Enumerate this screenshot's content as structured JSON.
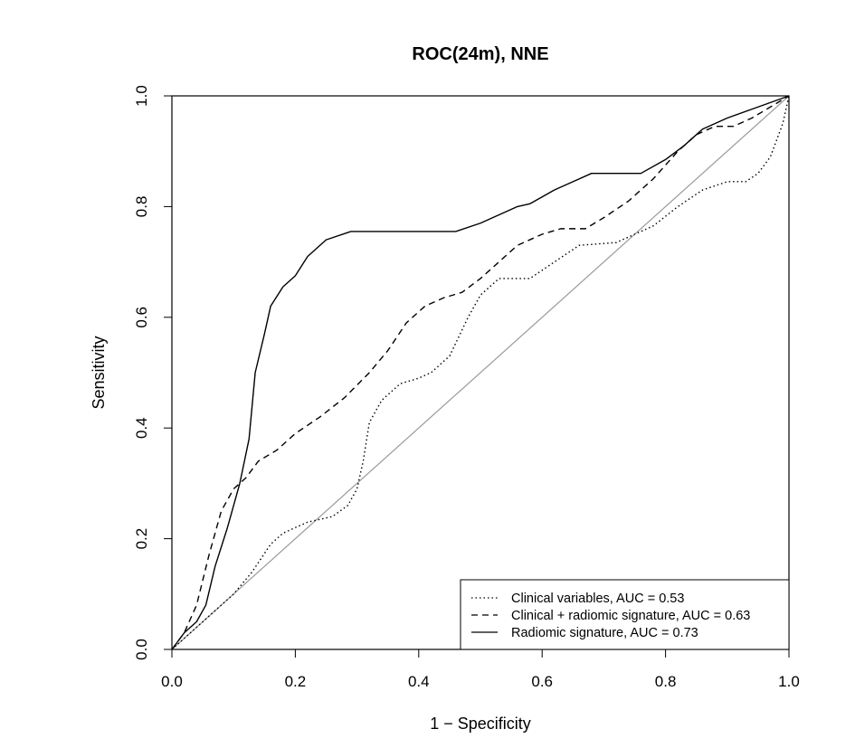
{
  "chart_data": {
    "type": "line",
    "title": "ROC(24m), NNE",
    "xlabel": "1 − Specificity",
    "ylabel": "Sensitivity",
    "xlim": [
      0,
      1
    ],
    "ylim": [
      0,
      1
    ],
    "x_ticks": [
      "0.0",
      "0.2",
      "0.4",
      "0.6",
      "0.8",
      "1.0"
    ],
    "y_ticks": [
      "0.0",
      "0.2",
      "0.4",
      "0.6",
      "0.8",
      "1.0"
    ],
    "grid": false,
    "legend_position": "bottom-right",
    "reference_line": {
      "from": [
        0,
        0
      ],
      "to": [
        1,
        1
      ],
      "color": "#9a9a9a"
    },
    "series": [
      {
        "name": "Clinical variables, AUC = 0.53",
        "style": "dotted",
        "color": "#000000",
        "points": [
          [
            0,
            0
          ],
          [
            0.02,
            0.02
          ],
          [
            0.05,
            0.05
          ],
          [
            0.08,
            0.08
          ],
          [
            0.1,
            0.1
          ],
          [
            0.13,
            0.14
          ],
          [
            0.16,
            0.19
          ],
          [
            0.18,
            0.21
          ],
          [
            0.22,
            0.23
          ],
          [
            0.26,
            0.24
          ],
          [
            0.285,
            0.26
          ],
          [
            0.3,
            0.29
          ],
          [
            0.31,
            0.34
          ],
          [
            0.32,
            0.41
          ],
          [
            0.34,
            0.45
          ],
          [
            0.37,
            0.48
          ],
          [
            0.4,
            0.49
          ],
          [
            0.42,
            0.5
          ],
          [
            0.45,
            0.53
          ],
          [
            0.48,
            0.6
          ],
          [
            0.5,
            0.64
          ],
          [
            0.53,
            0.67
          ],
          [
            0.56,
            0.67
          ],
          [
            0.58,
            0.67
          ],
          [
            0.62,
            0.7
          ],
          [
            0.66,
            0.73
          ],
          [
            0.72,
            0.735
          ],
          [
            0.78,
            0.765
          ],
          [
            0.82,
            0.8
          ],
          [
            0.86,
            0.83
          ],
          [
            0.9,
            0.845
          ],
          [
            0.93,
            0.845
          ],
          [
            0.95,
            0.86
          ],
          [
            0.97,
            0.89
          ],
          [
            0.99,
            0.95
          ],
          [
            1,
            1
          ]
        ]
      },
      {
        "name": "Clinical + radiomic signature, AUC = 0.63",
        "style": "dashed",
        "color": "#000000",
        "points": [
          [
            0,
            0
          ],
          [
            0.02,
            0.03
          ],
          [
            0.04,
            0.08
          ],
          [
            0.06,
            0.17
          ],
          [
            0.08,
            0.25
          ],
          [
            0.1,
            0.29
          ],
          [
            0.12,
            0.31
          ],
          [
            0.14,
            0.34
          ],
          [
            0.17,
            0.36
          ],
          [
            0.2,
            0.39
          ],
          [
            0.24,
            0.42
          ],
          [
            0.28,
            0.455
          ],
          [
            0.32,
            0.5
          ],
          [
            0.35,
            0.54
          ],
          [
            0.38,
            0.59
          ],
          [
            0.41,
            0.62
          ],
          [
            0.44,
            0.635
          ],
          [
            0.47,
            0.645
          ],
          [
            0.5,
            0.67
          ],
          [
            0.53,
            0.7
          ],
          [
            0.56,
            0.73
          ],
          [
            0.6,
            0.75
          ],
          [
            0.63,
            0.76
          ],
          [
            0.67,
            0.76
          ],
          [
            0.7,
            0.78
          ],
          [
            0.74,
            0.81
          ],
          [
            0.78,
            0.85
          ],
          [
            0.82,
            0.9
          ],
          [
            0.85,
            0.93
          ],
          [
            0.88,
            0.945
          ],
          [
            0.91,
            0.945
          ],
          [
            0.94,
            0.96
          ],
          [
            0.97,
            0.98
          ],
          [
            1,
            1
          ]
        ]
      },
      {
        "name": "Radiomic signature, AUC = 0.73",
        "style": "solid",
        "color": "#000000",
        "points": [
          [
            0,
            0
          ],
          [
            0.02,
            0.03
          ],
          [
            0.04,
            0.05
          ],
          [
            0.055,
            0.08
          ],
          [
            0.07,
            0.15
          ],
          [
            0.09,
            0.22
          ],
          [
            0.11,
            0.3
          ],
          [
            0.125,
            0.38
          ],
          [
            0.135,
            0.5
          ],
          [
            0.15,
            0.57
          ],
          [
            0.16,
            0.62
          ],
          [
            0.18,
            0.655
          ],
          [
            0.2,
            0.675
          ],
          [
            0.22,
            0.71
          ],
          [
            0.25,
            0.74
          ],
          [
            0.29,
            0.755
          ],
          [
            0.35,
            0.755
          ],
          [
            0.4,
            0.755
          ],
          [
            0.46,
            0.755
          ],
          [
            0.5,
            0.77
          ],
          [
            0.56,
            0.8
          ],
          [
            0.58,
            0.805
          ],
          [
            0.62,
            0.83
          ],
          [
            0.68,
            0.86
          ],
          [
            0.72,
            0.86
          ],
          [
            0.76,
            0.86
          ],
          [
            0.8,
            0.885
          ],
          [
            0.83,
            0.91
          ],
          [
            0.86,
            0.94
          ],
          [
            0.9,
            0.96
          ],
          [
            0.95,
            0.98
          ],
          [
            1,
            1
          ]
        ]
      }
    ]
  }
}
